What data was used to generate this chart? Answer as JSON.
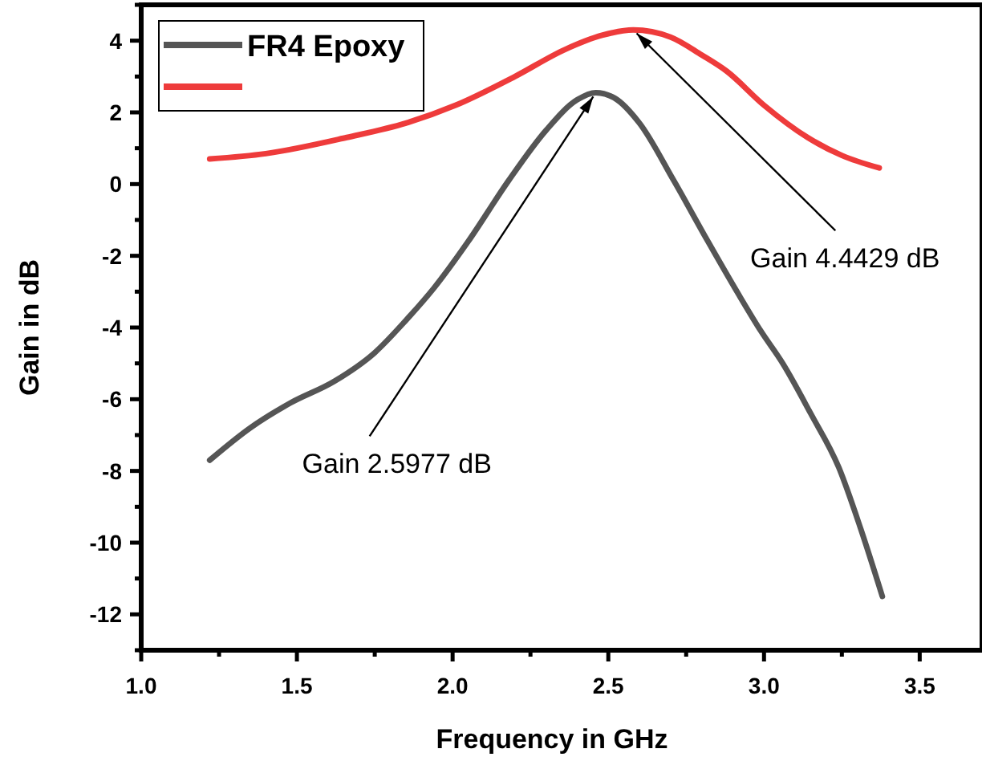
{
  "chart_data": {
    "type": "line",
    "xlabel": "Frequency in GHz",
    "ylabel": "Gain in dB",
    "xlim": [
      1.0,
      3.7
    ],
    "ylim": [
      -13,
      5
    ],
    "xticks": [
      {
        "value": 1,
        "label": "1.0"
      },
      {
        "value": 1.25,
        "label": null
      },
      {
        "value": 1.5,
        "label": "1.5"
      },
      {
        "value": 1.75,
        "label": null
      },
      {
        "value": 2,
        "label": "2.0"
      },
      {
        "value": 2.25,
        "label": null
      },
      {
        "value": 2.5,
        "label": "2.5"
      },
      {
        "value": 2.75,
        "label": null
      },
      {
        "value": 3,
        "label": "3.0"
      },
      {
        "value": 3.25,
        "label": null
      },
      {
        "value": 3.5,
        "label": "3.5"
      }
    ],
    "yticks": [
      {
        "value": -13,
        "label": null
      },
      -12,
      {
        "value": -11,
        "label": null
      },
      -10,
      {
        "value": -9,
        "label": null
      },
      -8,
      {
        "value": -7,
        "label": null
      },
      -6,
      {
        "value": -5,
        "label": null
      },
      -4,
      {
        "value": -3,
        "label": null
      },
      -2,
      {
        "value": -1,
        "label": null
      },
      0,
      {
        "value": 1,
        "label": null
      },
      2,
      {
        "value": 3,
        "label": null
      },
      4,
      {
        "value": 5,
        "label": null
      }
    ],
    "grid": false,
    "legend": "top left",
    "marker": "none",
    "line_style": "solid",
    "series": [
      {
        "name": "FR4 Epoxy",
        "color": "#555555",
        "x": [
          1.22,
          1.35,
          1.48,
          1.62,
          1.75,
          1.85,
          1.94,
          2.05,
          2.18,
          2.3,
          2.4,
          2.46,
          2.52,
          2.6,
          2.71,
          2.82,
          2.92,
          2.99,
          3.06,
          3.15,
          3.24,
          3.31,
          3.38
        ],
        "values": [
          -7.7,
          -6.8,
          -6.1,
          -5.5,
          -4.7,
          -3.8,
          -2.9,
          -1.6,
          0.1,
          1.5,
          2.35,
          2.55,
          2.4,
          1.7,
          0.1,
          -1.6,
          -3.1,
          -4.1,
          -5.0,
          -6.4,
          -7.9,
          -9.6,
          -11.5
        ]
      },
      {
        "color": "#ee3b3b",
        "x": [
          1.22,
          1.4,
          1.66,
          1.85,
          2.01,
          2.2,
          2.36,
          2.48,
          2.58,
          2.7,
          2.8,
          2.88,
          3.0,
          3.14,
          3.25,
          3.37
        ],
        "values": [
          0.7,
          0.85,
          1.3,
          1.7,
          2.2,
          3.0,
          3.75,
          4.15,
          4.3,
          4.1,
          3.6,
          3.15,
          2.2,
          1.3,
          0.8,
          0.45
        ]
      }
    ],
    "annotations": [
      {
        "text": "Gain 2.5977 dB",
        "x": 2.46,
        "y": 2.55
      },
      {
        "text": "Gain 4.4429 dB",
        "x": 2.58,
        "y": 4.3
      }
    ]
  }
}
